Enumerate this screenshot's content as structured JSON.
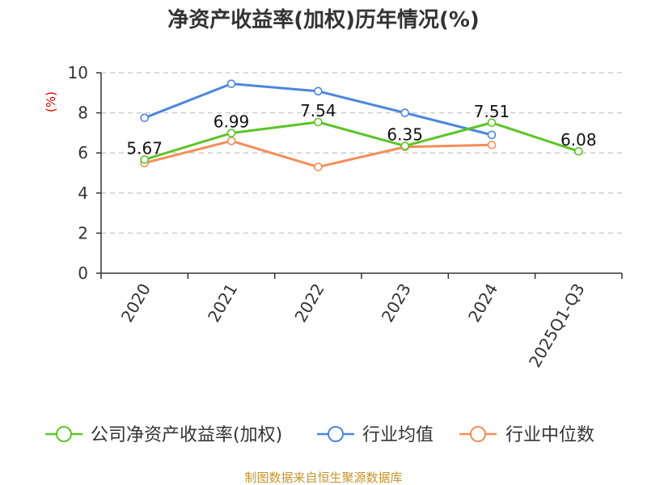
{
  "chart_data": {
    "type": "line",
    "title": "净资产收益率(加权)历年情况(%)",
    "ylabel": "(%)",
    "xlabel": "",
    "ylim": [
      0,
      10
    ],
    "yticks": [
      0,
      2,
      4,
      6,
      8,
      10
    ],
    "categories": [
      "2020",
      "2021",
      "2022",
      "2023",
      "2024",
      "2025Q1-Q3"
    ],
    "grid": true,
    "legend_position": "bottom",
    "series": [
      {
        "name": "公司净资产收益率(加权)",
        "color": "#5cc527",
        "values": [
          5.67,
          6.99,
          7.54,
          6.35,
          7.51,
          6.08
        ],
        "data_labels": [
          "5.67",
          "6.99",
          "7.54",
          "6.35",
          "7.51",
          "6.08"
        ]
      },
      {
        "name": "行业均值",
        "color": "#4b86dc",
        "values": [
          7.75,
          9.45,
          9.08,
          8.0,
          6.9,
          null
        ]
      },
      {
        "name": "行业中位数",
        "color": "#f58d59",
        "values": [
          5.5,
          6.6,
          5.3,
          6.3,
          6.4,
          null
        ]
      }
    ]
  },
  "source_text": "制图数据来自恒生聚源数据库",
  "colors": {
    "axis": "#333333",
    "grid": "#c8c8c8",
    "ylabel": "#cc0000",
    "source": "#c8952a"
  }
}
